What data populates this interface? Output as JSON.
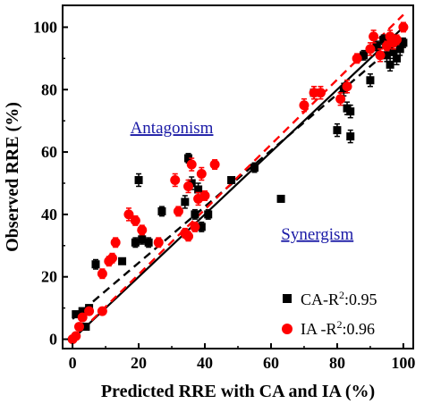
{
  "chart_data": {
    "type": "scatter",
    "xlabel": "Predicted RRE with CA and IA  (%)",
    "ylabel": "Observed RRE (%)",
    "xlim": [
      -3,
      103
    ],
    "ylim": [
      -3,
      107
    ],
    "xticks": [
      0,
      20,
      40,
      60,
      80,
      100
    ],
    "yticks": [
      0,
      20,
      40,
      60,
      80,
      100
    ],
    "grid": false,
    "legend_position": "bottom-right",
    "annotations": [
      {
        "text": "Antagonism",
        "x": 30,
        "y": 66
      },
      {
        "text": "Synergism",
        "x": 74,
        "y": 32
      }
    ],
    "reference_line": {
      "label": "1:1",
      "x": [
        0,
        100
      ],
      "y": [
        0,
        100
      ],
      "style": "solid",
      "color": "#000000"
    },
    "series": [
      {
        "name": "CA-R²:0.95",
        "legend_text": "CA-R",
        "legend_sup": "2",
        "legend_value": ":0.95",
        "marker": "square",
        "color": "#000000",
        "fit_line": {
          "x": [
            0,
            100
          ],
          "y": [
            6.5,
            96.5
          ],
          "style": "dashed",
          "color": "#000000"
        },
        "points": [
          {
            "x": 1,
            "y": 8,
            "err": 1
          },
          {
            "x": 3,
            "y": 9,
            "err": 1
          },
          {
            "x": 4,
            "y": 4,
            "err": 1
          },
          {
            "x": 5,
            "y": 10,
            "err": 1
          },
          {
            "x": 7,
            "y": 24,
            "err": 1.5
          },
          {
            "x": 15,
            "y": 25,
            "err": 1
          },
          {
            "x": 19,
            "y": 31,
            "err": 1.5
          },
          {
            "x": 20,
            "y": 51,
            "err": 2
          },
          {
            "x": 21,
            "y": 32,
            "err": 1.5
          },
          {
            "x": 23,
            "y": 31,
            "err": 1.5
          },
          {
            "x": 27,
            "y": 41,
            "err": 1.5
          },
          {
            "x": 34,
            "y": 44,
            "err": 2
          },
          {
            "x": 35,
            "y": 58,
            "err": 1.5
          },
          {
            "x": 36,
            "y": 50,
            "err": 2
          },
          {
            "x": 37,
            "y": 40,
            "err": 1.5
          },
          {
            "x": 38,
            "y": 48,
            "err": 2
          },
          {
            "x": 39,
            "y": 36,
            "err": 1.5
          },
          {
            "x": 41,
            "y": 40,
            "err": 1.5
          },
          {
            "x": 48,
            "y": 51,
            "err": 1
          },
          {
            "x": 55,
            "y": 55,
            "err": 1.5
          },
          {
            "x": 63,
            "y": 45,
            "err": 1
          },
          {
            "x": 73,
            "y": 79,
            "err": 2
          },
          {
            "x": 80,
            "y": 67,
            "err": 2
          },
          {
            "x": 82,
            "y": 80,
            "err": 2
          },
          {
            "x": 83,
            "y": 74,
            "err": 2
          },
          {
            "x": 84,
            "y": 65,
            "err": 2
          },
          {
            "x": 84,
            "y": 73,
            "err": 2
          },
          {
            "x": 88,
            "y": 91,
            "err": 1.5
          },
          {
            "x": 90,
            "y": 83,
            "err": 2
          },
          {
            "x": 92,
            "y": 94,
            "err": 1.5
          },
          {
            "x": 94,
            "y": 96,
            "err": 1.5
          },
          {
            "x": 95,
            "y": 91,
            "err": 2
          },
          {
            "x": 96,
            "y": 88,
            "err": 2
          },
          {
            "x": 97,
            "y": 92,
            "err": 2
          },
          {
            "x": 98,
            "y": 90,
            "err": 2
          },
          {
            "x": 99,
            "y": 93,
            "err": 2
          },
          {
            "x": 100,
            "y": 95,
            "err": 1.5
          }
        ]
      },
      {
        "name": "IA -R²:0.96",
        "legend_text": "IA -R",
        "legend_sup": "2",
        "legend_value": ":0.96",
        "marker": "circle",
        "color": "#ff0000",
        "fit_line": {
          "x": [
            0,
            100
          ],
          "y": [
            0,
            104
          ],
          "style": "dashed",
          "color": "#ff0000"
        },
        "points": [
          {
            "x": 0,
            "y": 0,
            "err": 1
          },
          {
            "x": 1,
            "y": 1,
            "err": 1
          },
          {
            "x": 2,
            "y": 4,
            "err": 1
          },
          {
            "x": 3,
            "y": 7,
            "err": 1
          },
          {
            "x": 5,
            "y": 9,
            "err": 1
          },
          {
            "x": 9,
            "y": 9,
            "err": 1
          },
          {
            "x": 9,
            "y": 21,
            "err": 1.5
          },
          {
            "x": 11,
            "y": 25,
            "err": 1.5
          },
          {
            "x": 12,
            "y": 26,
            "err": 1.5
          },
          {
            "x": 13,
            "y": 31,
            "err": 1.5
          },
          {
            "x": 17,
            "y": 40,
            "err": 2
          },
          {
            "x": 19,
            "y": 38,
            "err": 1.5
          },
          {
            "x": 21,
            "y": 35,
            "err": 1.5
          },
          {
            "x": 26,
            "y": 31,
            "err": 1.5
          },
          {
            "x": 31,
            "y": 51,
            "err": 2
          },
          {
            "x": 32,
            "y": 41,
            "err": 1.5
          },
          {
            "x": 34,
            "y": 34,
            "err": 1.5
          },
          {
            "x": 35,
            "y": 33,
            "err": 1.5
          },
          {
            "x": 35,
            "y": 49,
            "err": 2
          },
          {
            "x": 36,
            "y": 56,
            "err": 2
          },
          {
            "x": 37,
            "y": 36,
            "err": 1.5
          },
          {
            "x": 38,
            "y": 45,
            "err": 2
          },
          {
            "x": 39,
            "y": 53,
            "err": 2
          },
          {
            "x": 40,
            "y": 46,
            "err": 1.5
          },
          {
            "x": 43,
            "y": 56,
            "err": 1.5
          },
          {
            "x": 70,
            "y": 75,
            "err": 2
          },
          {
            "x": 73,
            "y": 79,
            "err": 2
          },
          {
            "x": 75,
            "y": 79,
            "err": 2
          },
          {
            "x": 81,
            "y": 77,
            "err": 2
          },
          {
            "x": 83,
            "y": 81,
            "err": 2
          },
          {
            "x": 86,
            "y": 90,
            "err": 1.5
          },
          {
            "x": 90,
            "y": 93,
            "err": 2
          },
          {
            "x": 91,
            "y": 97,
            "err": 2
          },
          {
            "x": 93,
            "y": 91,
            "err": 2
          },
          {
            "x": 95,
            "y": 94,
            "err": 1.5
          },
          {
            "x": 96,
            "y": 97,
            "err": 2
          },
          {
            "x": 97,
            "y": 95,
            "err": 2
          },
          {
            "x": 98,
            "y": 96,
            "err": 1.5
          },
          {
            "x": 100,
            "y": 100,
            "err": 1.5
          }
        ]
      }
    ]
  }
}
